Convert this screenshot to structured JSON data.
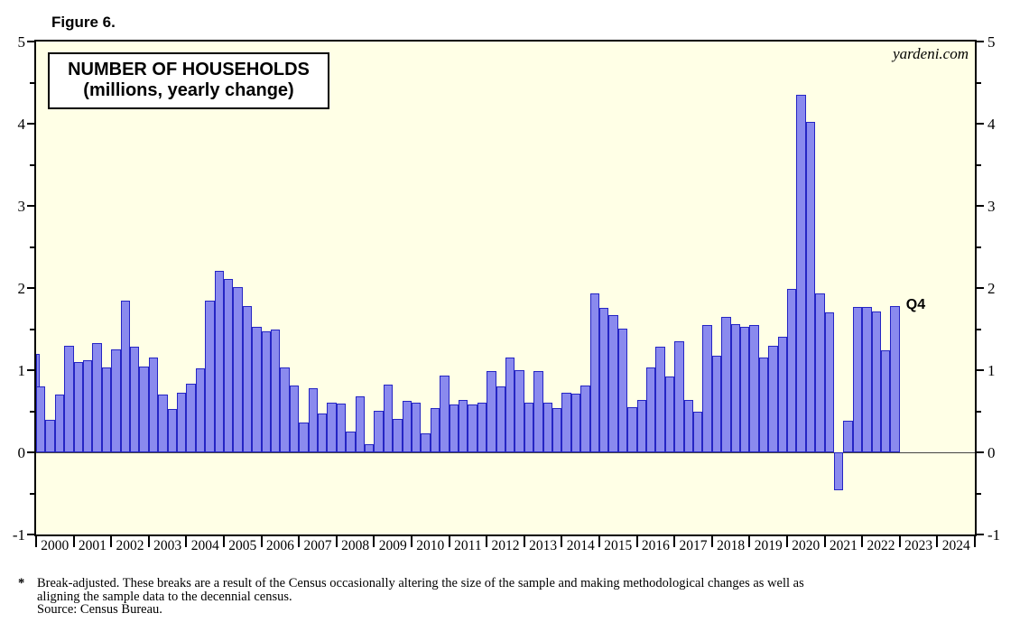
{
  "figure_label": "Figure 6.",
  "watermark": "yardeni.com",
  "chart_data": {
    "type": "bar",
    "title": "NUMBER OF HOUSEHOLDS",
    "subtitle": "(millions, yearly change)",
    "ylim": [
      -1,
      5
    ],
    "y_ticks": [
      -1,
      0,
      1,
      2,
      3,
      4,
      5
    ],
    "y_minor_step": 0.5,
    "grid": false,
    "bar_fill": "#8a8aee",
    "bar_border": "#2525c4",
    "plot_background": "#ffffe6",
    "x_years": [
      2000,
      2001,
      2002,
      2003,
      2004,
      2005,
      2006,
      2007,
      2008,
      2009,
      2010,
      2011,
      2012,
      2013,
      2014,
      2015,
      2016,
      2017,
      2018,
      2019,
      2020,
      2021,
      2022,
      2023,
      2024
    ],
    "annotation": {
      "text": "Q4",
      "at_label": "2022 Q4",
      "value": 1.78
    },
    "points": [
      {
        "label": "1999 Q4",
        "value": 1.2,
        "partial": true
      },
      {
        "label": "2000 Q1",
        "value": 0.8
      },
      {
        "label": "2000 Q2",
        "value": 0.4
      },
      {
        "label": "2000 Q3",
        "value": 0.7
      },
      {
        "label": "2000 Q4",
        "value": 1.3
      },
      {
        "label": "2001 Q1",
        "value": 1.1
      },
      {
        "label": "2001 Q2",
        "value": 1.12
      },
      {
        "label": "2001 Q3",
        "value": 1.33
      },
      {
        "label": "2001 Q4",
        "value": 1.03
      },
      {
        "label": "2002 Q1",
        "value": 1.25
      },
      {
        "label": "2002 Q2",
        "value": 1.85
      },
      {
        "label": "2002 Q3",
        "value": 1.29
      },
      {
        "label": "2002 Q4",
        "value": 1.04
      },
      {
        "label": "2003 Q1",
        "value": 1.15
      },
      {
        "label": "2003 Q2",
        "value": 0.7
      },
      {
        "label": "2003 Q3",
        "value": 0.53
      },
      {
        "label": "2003 Q4",
        "value": 0.73
      },
      {
        "label": "2004 Q1",
        "value": 0.84
      },
      {
        "label": "2004 Q2",
        "value": 1.02
      },
      {
        "label": "2004 Q3",
        "value": 1.85
      },
      {
        "label": "2004 Q4",
        "value": 2.21
      },
      {
        "label": "2005 Q1",
        "value": 2.11
      },
      {
        "label": "2005 Q2",
        "value": 2.01
      },
      {
        "label": "2005 Q3",
        "value": 1.78
      },
      {
        "label": "2005 Q4",
        "value": 1.53
      },
      {
        "label": "2006 Q1",
        "value": 1.47
      },
      {
        "label": "2006 Q2",
        "value": 1.49
      },
      {
        "label": "2006 Q3",
        "value": 1.03
      },
      {
        "label": "2006 Q4",
        "value": 0.81
      },
      {
        "label": "2007 Q1",
        "value": 0.36
      },
      {
        "label": "2007 Q2",
        "value": 0.78
      },
      {
        "label": "2007 Q3",
        "value": 0.47
      },
      {
        "label": "2007 Q4",
        "value": 0.61
      },
      {
        "label": "2008 Q1",
        "value": 0.59
      },
      {
        "label": "2008 Q2",
        "value": 0.25
      },
      {
        "label": "2008 Q3",
        "value": 0.68
      },
      {
        "label": "2008 Q4",
        "value": 0.1
      },
      {
        "label": "2009 Q1",
        "value": 0.51
      },
      {
        "label": "2009 Q2",
        "value": 0.82
      },
      {
        "label": "2009 Q3",
        "value": 0.41
      },
      {
        "label": "2009 Q4",
        "value": 0.63
      },
      {
        "label": "2010 Q1",
        "value": 0.61
      },
      {
        "label": "2010 Q2",
        "value": 0.23
      },
      {
        "label": "2010 Q3",
        "value": 0.54
      },
      {
        "label": "2010 Q4",
        "value": 0.93
      },
      {
        "label": "2011 Q1",
        "value": 0.58
      },
      {
        "label": "2011 Q2",
        "value": 0.64
      },
      {
        "label": "2011 Q3",
        "value": 0.58
      },
      {
        "label": "2011 Q4",
        "value": 0.61
      },
      {
        "label": "2012 Q1",
        "value": 0.99
      },
      {
        "label": "2012 Q2",
        "value": 0.8
      },
      {
        "label": "2012 Q3",
        "value": 1.15
      },
      {
        "label": "2012 Q4",
        "value": 1.0
      },
      {
        "label": "2013 Q1",
        "value": 0.6
      },
      {
        "label": "2013 Q2",
        "value": 0.99
      },
      {
        "label": "2013 Q3",
        "value": 0.6
      },
      {
        "label": "2013 Q4",
        "value": 0.54
      },
      {
        "label": "2014 Q1",
        "value": 0.73
      },
      {
        "label": "2014 Q2",
        "value": 0.71
      },
      {
        "label": "2014 Q3",
        "value": 0.81
      },
      {
        "label": "2014 Q4",
        "value": 1.94
      },
      {
        "label": "2015 Q1",
        "value": 1.76
      },
      {
        "label": "2015 Q2",
        "value": 1.67
      },
      {
        "label": "2015 Q3",
        "value": 1.51
      },
      {
        "label": "2015 Q4",
        "value": 0.55
      },
      {
        "label": "2016 Q1",
        "value": 0.64
      },
      {
        "label": "2016 Q2",
        "value": 1.03
      },
      {
        "label": "2016 Q3",
        "value": 1.29
      },
      {
        "label": "2016 Q4",
        "value": 0.92
      },
      {
        "label": "2017 Q1",
        "value": 1.35
      },
      {
        "label": "2017 Q2",
        "value": 0.64
      },
      {
        "label": "2017 Q3",
        "value": 0.5
      },
      {
        "label": "2017 Q4",
        "value": 1.55
      },
      {
        "label": "2018 Q1",
        "value": 1.18
      },
      {
        "label": "2018 Q2",
        "value": 1.65
      },
      {
        "label": "2018 Q3",
        "value": 1.56
      },
      {
        "label": "2018 Q4",
        "value": 1.53
      },
      {
        "label": "2019 Q1",
        "value": 1.55
      },
      {
        "label": "2019 Q2",
        "value": 1.15
      },
      {
        "label": "2019 Q3",
        "value": 1.3
      },
      {
        "label": "2019 Q4",
        "value": 1.41
      },
      {
        "label": "2020 Q1",
        "value": 1.99
      },
      {
        "label": "2020 Q2",
        "value": 4.35
      },
      {
        "label": "2020 Q3",
        "value": 4.02
      },
      {
        "label": "2020 Q4",
        "value": 1.94
      },
      {
        "label": "2021 Q1",
        "value": 1.7
      },
      {
        "label": "2021 Q2",
        "value": -0.46
      },
      {
        "label": "2021 Q3",
        "value": 0.39
      },
      {
        "label": "2021 Q4",
        "value": 1.77
      },
      {
        "label": "2022 Q1",
        "value": 1.77
      },
      {
        "label": "2022 Q2",
        "value": 1.71
      },
      {
        "label": "2022 Q3",
        "value": 1.24
      },
      {
        "label": "2022 Q4",
        "value": 1.78
      }
    ]
  },
  "footnote": {
    "marker": "*",
    "line1": "Break-adjusted. These breaks are a result of the Census occasionally altering the size of the sample and making methodological changes as well as",
    "line2": "aligning the sample data to the decennial census.",
    "line3": "Source: Census Bureau."
  }
}
